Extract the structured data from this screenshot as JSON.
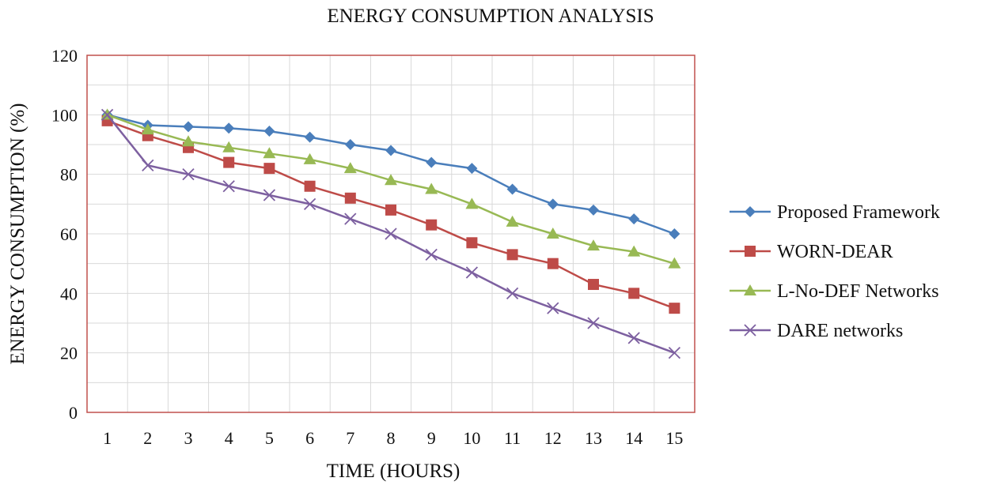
{
  "chart_data": {
    "type": "line",
    "title": "ENERGY CONSUMPTION ANALYSIS",
    "xlabel": "TIME (HOURS)",
    "ylabel": "ENERGY CONSUMPTION (%)",
    "ylim": [
      0,
      120
    ],
    "yticks": [
      0,
      20,
      40,
      60,
      80,
      100,
      120
    ],
    "grid": true,
    "legend_position": "right",
    "x": [
      1,
      2,
      3,
      4,
      5,
      6,
      7,
      8,
      9,
      10,
      11,
      12,
      13,
      14,
      15
    ],
    "series": [
      {
        "name": "Proposed Framework",
        "color": "#4a7ebb",
        "marker": "diamond",
        "values": [
          100,
          96.5,
          96,
          95.5,
          94.5,
          92.5,
          90,
          88,
          84,
          82,
          75,
          70,
          68,
          65,
          60
        ]
      },
      {
        "name": "WORN-DEAR",
        "color": "#be4b48",
        "marker": "square",
        "values": [
          98,
          93,
          89,
          84,
          82,
          76,
          72,
          68,
          63,
          57,
          53,
          50,
          43,
          40,
          35
        ]
      },
      {
        "name": "L-No-DEF Networks",
        "color": "#98b954",
        "marker": "triangle",
        "values": [
          100,
          95,
          91,
          89,
          87,
          85,
          82,
          78,
          75,
          70,
          64,
          60,
          56,
          54,
          50
        ]
      },
      {
        "name": "DARE networks",
        "color": "#7d60a0",
        "marker": "x",
        "values": [
          100,
          83,
          80,
          76,
          73,
          70,
          65,
          60,
          53,
          47,
          40,
          35,
          30,
          25,
          20
        ]
      }
    ]
  },
  "colors": {
    "plot_border": "#c0504d",
    "grid": "#d9d9d9",
    "text": "#111111"
  }
}
